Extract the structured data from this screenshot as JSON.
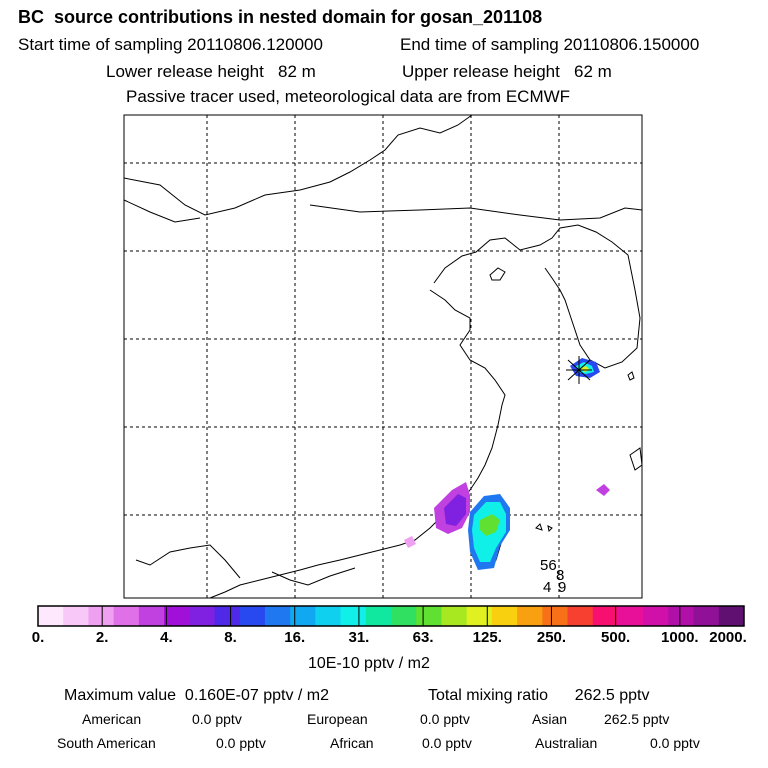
{
  "header": {
    "title": "BC  source contributions in nested domain for gosan_201108",
    "start": "Start time of sampling 20110806.120000",
    "end": "End time of sampling 20110806.150000",
    "lower": "Lower release height   82 m",
    "upper": "Upper release height   62 m",
    "note": "Passive tracer used, meteorological data are from ECMWF"
  },
  "map_labels": {
    "a": "56",
    "b": "8",
    "c": "4",
    "d": "9"
  },
  "legend": {
    "colors": [
      "#fde8fd",
      "#f8c8f8",
      "#f0a0f0",
      "#e070e8",
      "#c040e0",
      "#a010d8",
      "#8020e0",
      "#5028e8",
      "#2848f0",
      "#2078f0",
      "#10a8f0",
      "#10d0f0",
      "#10f0e8",
      "#10e8a0",
      "#30e060",
      "#60e030",
      "#a8e820",
      "#e0f020",
      "#f8d010",
      "#f8a010",
      "#f87018",
      "#f84030",
      "#f81070",
      "#e81098",
      "#d010a8",
      "#b010a8",
      "#901098",
      "#601070"
    ],
    "labels": [
      "0.",
      "2.",
      "4.",
      "8.",
      "16.",
      "31.",
      "63.",
      "125.",
      "250.",
      "500.",
      "1000.",
      "2000."
    ],
    "unit": "10E-10 pptv / m2"
  },
  "stats": {
    "max": "Maximum value  0.160E-07 pptv / m2",
    "total": "Total mixing ratio      262.5 pptv",
    "row1": [
      {
        "name": "American",
        "value": "0.0 pptv"
      },
      {
        "name": "European",
        "value": "0.0 pptv"
      },
      {
        "name": "Asian",
        "value": "262.5 pptv"
      }
    ],
    "row2": [
      {
        "name": "South American",
        "value": "0.0 pptv"
      },
      {
        "name": "African",
        "value": "0.0 pptv"
      },
      {
        "name": "Australian",
        "value": "0.0 pptv"
      }
    ]
  }
}
